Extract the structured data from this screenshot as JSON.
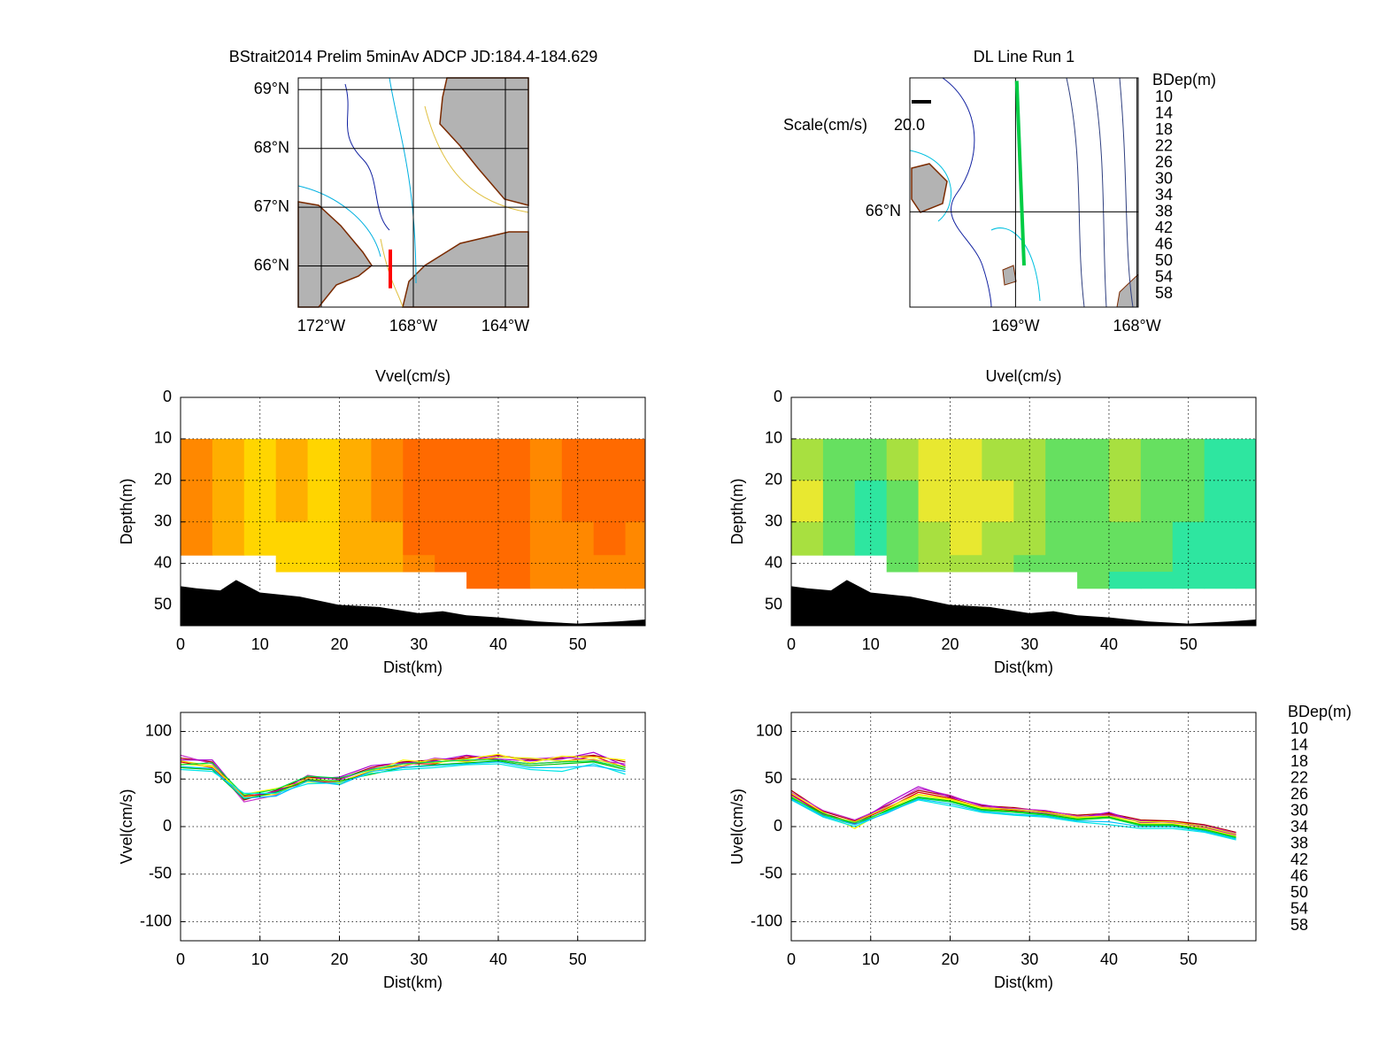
{
  "chart_data": [
    {
      "type": "map",
      "title": "BStrait2014 Prelim 5minAv ADCP JD:184.4-184.629",
      "xlim": [
        -173,
        -163
      ],
      "ylim": [
        65.3,
        69.2
      ],
      "xticks": [
        {
          "value": -172,
          "label": "172°W"
        },
        {
          "value": -168,
          "label": "168°W"
        },
        {
          "value": -164,
          "label": "164°W"
        }
      ],
      "yticks": [
        {
          "value": 66,
          "label": "66°N"
        },
        {
          "value": 67,
          "label": "67°N"
        },
        {
          "value": 68,
          "label": "68°N"
        },
        {
          "value": 69,
          "label": "69°N"
        }
      ],
      "grid": true,
      "track": {
        "color": "#ff0000",
        "lon": [
          -169,
          -169
        ],
        "lat": [
          65.62,
          66.28
        ]
      }
    },
    {
      "type": "map",
      "title": "DL Line Run 1",
      "xlim": [
        -169.87,
        -167.99
      ],
      "ylim": [
        65.68,
        66.45
      ],
      "xticks": [
        {
          "value": -169,
          "label": "169°W"
        },
        {
          "value": -168,
          "label": "168°W"
        }
      ],
      "yticks": [
        {
          "value": 66,
          "label": "66°N"
        }
      ],
      "grid": true,
      "track": {
        "color": "#00cc44",
        "lon": [
          -168.93,
          -168.99
        ],
        "lat": [
          65.82,
          66.44
        ]
      },
      "scale_label": "Scale(cm/s)",
      "scale": {
        "value": 20,
        "label": "20.0"
      },
      "legend_title": "BDep(m)",
      "legend_entries": [
        {
          "name": "10",
          "color": "#b00000"
        },
        {
          "name": "14",
          "color": "#dd0000"
        },
        {
          "name": "18",
          "color": "#cc33cc"
        },
        {
          "name": "22",
          "color": "#aa00cc"
        },
        {
          "name": "26",
          "color": "#ffff00"
        },
        {
          "name": "30",
          "color": "#e6e600"
        },
        {
          "name": "34",
          "color": "#00c000"
        },
        {
          "name": "38",
          "color": "#00dd44"
        },
        {
          "name": "42",
          "color": "#00e6e6"
        },
        {
          "name": "46",
          "color": "#00c0ff"
        },
        {
          "name": "50",
          "color": "#0000a0"
        },
        {
          "name": "54",
          "color": "#0000cc"
        },
        {
          "name": "58",
          "color": "#000000"
        }
      ]
    },
    {
      "type": "contour",
      "title": "Vvel(cm/s)",
      "xlabel": "Dist(km)",
      "ylabel": "Depth(m)",
      "xlim": [
        0,
        58.5
      ],
      "ylim": [
        0,
        55
      ],
      "y_reversed": true,
      "xticks": [
        0,
        10,
        20,
        30,
        40,
        50
      ],
      "yticks": [
        0,
        10,
        20,
        30,
        40,
        50
      ],
      "grid": true,
      "x_edges": [
        0,
        4,
        8,
        12,
        16,
        20,
        24,
        28,
        32,
        36,
        40,
        44,
        48,
        52,
        56,
        58.5
      ],
      "depth_edges": [
        10,
        20,
        30,
        38,
        42,
        46
      ],
      "z": [
        [
          65,
          55,
          45,
          50,
          45,
          55,
          60,
          75,
          75,
          75,
          72,
          65,
          70,
          75,
          70
        ],
        [
          68,
          58,
          45,
          50,
          48,
          52,
          62,
          72,
          75,
          78,
          72,
          68,
          72,
          72,
          70
        ],
        [
          65,
          50,
          42,
          45,
          42,
          50,
          55,
          70,
          72,
          75,
          70,
          65,
          65,
          70,
          65
        ],
        [
          null,
          null,
          null,
          45,
          45,
          50,
          55,
          65,
          70,
          72,
          70,
          65,
          65,
          68,
          62
        ],
        [
          null,
          null,
          null,
          null,
          null,
          null,
          null,
          null,
          null,
          70,
          70,
          65,
          62,
          65,
          60
        ]
      ],
      "levels": [
        0,
        10,
        20,
        30,
        40,
        50,
        60,
        70,
        80
      ],
      "level_colors": [
        "#2ee6a0",
        "#66e060",
        "#a8e040",
        "#e8e830",
        "#ffd500",
        "#ffae00",
        "#ff8800",
        "#ff6a00",
        "#e02810"
      ],
      "bottom": {
        "x": [
          0,
          2,
          5,
          7,
          10,
          15,
          20,
          25,
          30,
          33,
          36,
          40,
          45,
          50,
          55,
          58.5
        ],
        "depth": [
          45.5,
          46,
          46.5,
          44,
          47,
          48,
          50,
          50.5,
          52,
          51.5,
          52.5,
          53,
          54,
          54.5,
          54,
          53.5
        ]
      }
    },
    {
      "type": "contour",
      "title": "Uvel(cm/s)",
      "xlabel": "Dist(km)",
      "ylabel": "Depth(m)",
      "xlim": [
        0,
        58.5
      ],
      "ylim": [
        0,
        55
      ],
      "y_reversed": true,
      "xticks": [
        0,
        10,
        20,
        30,
        40,
        50
      ],
      "yticks": [
        0,
        10,
        20,
        30,
        40,
        50
      ],
      "grid": true,
      "x_edges": [
        0,
        4,
        8,
        12,
        16,
        20,
        24,
        28,
        32,
        36,
        40,
        44,
        48,
        52,
        56,
        58.5
      ],
      "depth_edges": [
        10,
        20,
        30,
        38,
        42,
        46
      ],
      "z": [
        [
          25,
          15,
          10,
          20,
          30,
          35,
          25,
          20,
          15,
          15,
          20,
          15,
          10,
          5,
          5
        ],
        [
          30,
          10,
          5,
          15,
          30,
          35,
          30,
          22,
          18,
          15,
          20,
          15,
          10,
          5,
          5
        ],
        [
          20,
          10,
          5,
          15,
          25,
          30,
          25,
          20,
          18,
          12,
          15,
          10,
          8,
          5,
          5
        ],
        [
          null,
          null,
          null,
          15,
          20,
          25,
          20,
          18,
          15,
          10,
          12,
          10,
          5,
          5,
          5
        ],
        [
          null,
          null,
          null,
          null,
          null,
          null,
          null,
          null,
          null,
          10,
          8,
          5,
          5,
          5,
          5
        ]
      ],
      "levels": [
        0,
        10,
        20,
        30,
        40,
        50,
        60,
        70,
        80
      ],
      "level_colors": [
        "#2ee6a0",
        "#66e060",
        "#a8e040",
        "#e8e830",
        "#ffd500",
        "#ffae00",
        "#ff8800",
        "#ff6a00",
        "#e02810"
      ],
      "bottom": {
        "x": [
          0,
          2,
          5,
          7,
          10,
          15,
          20,
          25,
          30,
          33,
          36,
          40,
          45,
          50,
          55,
          58.5
        ],
        "depth": [
          45.5,
          46,
          46.5,
          44,
          47,
          48,
          50,
          50.5,
          52,
          51.5,
          52.5,
          53,
          54,
          54.5,
          54,
          53.5
        ]
      }
    },
    {
      "type": "line",
      "xlabel": "Dist(km)",
      "ylabel": "Vvel(cm/s)",
      "xlim": [
        0,
        58.5
      ],
      "ylim": [
        -120,
        120
      ],
      "xticks": [
        0,
        10,
        20,
        30,
        40,
        50
      ],
      "yticks": [
        -100,
        -50,
        0,
        50,
        100
      ],
      "grid": true,
      "x": [
        0,
        4,
        8,
        12,
        16,
        20,
        24,
        28,
        32,
        36,
        40,
        44,
        48,
        52,
        56
      ],
      "series": [
        {
          "color": "#b00000",
          "values": [
            72,
            68,
            28,
            38,
            52,
            50,
            62,
            68,
            70,
            72,
            75,
            70,
            72,
            75,
            68
          ]
        },
        {
          "color": "#dd0000",
          "values": [
            68,
            62,
            32,
            36,
            48,
            46,
            58,
            66,
            66,
            74,
            70,
            66,
            68,
            74,
            62
          ]
        },
        {
          "color": "#cc33cc",
          "values": [
            75,
            66,
            26,
            33,
            54,
            49,
            61,
            63,
            72,
            69,
            74,
            71,
            73,
            70,
            66
          ]
        },
        {
          "color": "#aa00cc",
          "values": [
            70,
            70,
            30,
            37,
            50,
            52,
            64,
            67,
            69,
            75,
            71,
            69,
            71,
            78,
            64
          ]
        },
        {
          "color": "#ffff00",
          "values": [
            66,
            63,
            34,
            40,
            47,
            45,
            57,
            70,
            67,
            71,
            76,
            67,
            74,
            73,
            70
          ]
        },
        {
          "color": "#e6e600",
          "values": [
            69,
            64,
            31,
            34,
            51,
            47,
            59,
            64,
            71,
            68,
            73,
            72,
            69,
            71,
            63
          ]
        },
        {
          "color": "#00c000",
          "values": [
            62,
            60,
            29,
            36,
            49,
            48,
            55,
            62,
            65,
            67,
            69,
            64,
            66,
            68,
            60
          ]
        },
        {
          "color": "#00dd44",
          "values": [
            65,
            67,
            33,
            39,
            53,
            51,
            60,
            66,
            68,
            70,
            70,
            66,
            68,
            69,
            62
          ]
        },
        {
          "color": "#00e6e6",
          "values": [
            60,
            58,
            35,
            35,
            45,
            46,
            56,
            60,
            62,
            65,
            66,
            60,
            58,
            66,
            55
          ]
        },
        {
          "color": "#00c0ff",
          "values": [
            63,
            61,
            30,
            32,
            48,
            44,
            58,
            62,
            64,
            66,
            68,
            62,
            62,
            64,
            58
          ]
        }
      ]
    },
    {
      "type": "line",
      "xlabel": "Dist(km)",
      "ylabel": "Uvel(cm/s)",
      "xlim": [
        0,
        58.5
      ],
      "ylim": [
        -120,
        120
      ],
      "xticks": [
        0,
        10,
        20,
        30,
        40,
        50
      ],
      "yticks": [
        -100,
        -50,
        0,
        50,
        100
      ],
      "grid": true,
      "legend_title": "BDep(m)",
      "x": [
        0,
        4,
        8,
        12,
        16,
        20,
        24,
        28,
        32,
        36,
        40,
        44,
        48,
        52,
        56
      ],
      "series": [
        {
          "name": "10",
          "color": "#b00000",
          "values": [
            38,
            16,
            6,
            22,
            38,
            32,
            22,
            20,
            16,
            12,
            14,
            7,
            6,
            2,
            -6
          ]
        },
        {
          "name": "14",
          "color": "#dd0000",
          "values": [
            34,
            14,
            4,
            19,
            36,
            30,
            20,
            17,
            15,
            10,
            13,
            5,
            6,
            0,
            -8
          ]
        },
        {
          "name": "18",
          "color": "#cc33cc",
          "values": [
            36,
            17,
            7,
            21,
            40,
            33,
            21,
            19,
            17,
            11,
            12,
            6,
            4,
            1,
            -7
          ]
        },
        {
          "name": "22",
          "color": "#aa00cc",
          "values": [
            33,
            13,
            3,
            24,
            42,
            31,
            23,
            18,
            14,
            9,
            15,
            4,
            5,
            -1,
            -9
          ]
        },
        {
          "name": "26",
          "color": "#ffff00",
          "values": [
            35,
            15,
            -2,
            18,
            33,
            28,
            19,
            16,
            13,
            9,
            10,
            3,
            3,
            -2,
            -10
          ]
        },
        {
          "name": "30",
          "color": "#e6e600",
          "values": [
            32,
            12,
            5,
            20,
            34,
            29,
            20,
            18,
            15,
            10,
            11,
            5,
            5,
            0,
            -8
          ]
        },
        {
          "name": "34",
          "color": "#00c000",
          "values": [
            30,
            14,
            2,
            17,
            31,
            27,
            18,
            16,
            13,
            8,
            10,
            2,
            2,
            -3,
            -11
          ]
        },
        {
          "name": "38",
          "color": "#00dd44",
          "values": [
            31,
            12,
            4,
            16,
            30,
            26,
            17,
            15,
            12,
            7,
            9,
            1,
            1,
            -4,
            -12
          ]
        },
        {
          "name": "42",
          "color": "#00e6e6",
          "values": [
            28,
            10,
            0,
            15,
            28,
            22,
            15,
            12,
            10,
            5,
            2,
            -2,
            -2,
            -6,
            -14
          ]
        },
        {
          "name": "46",
          "color": "#00c0ff",
          "values": [
            29,
            11,
            2,
            14,
            29,
            24,
            16,
            13,
            11,
            6,
            5,
            0,
            0,
            -5,
            -13
          ]
        },
        {
          "name": "50",
          "color": "#0000a0",
          "values": [
            null,
            null,
            null,
            null,
            null,
            null,
            null,
            null,
            null,
            null,
            null,
            null,
            null,
            null,
            null
          ]
        },
        {
          "name": "54",
          "color": "#0000cc",
          "values": [
            null,
            null,
            null,
            null,
            null,
            null,
            null,
            null,
            null,
            null,
            null,
            null,
            null,
            null,
            null
          ]
        },
        {
          "name": "58",
          "color": "#000000",
          "values": [
            null,
            null,
            null,
            null,
            null,
            null,
            null,
            null,
            null,
            null,
            null,
            null,
            null,
            null,
            null
          ]
        }
      ]
    }
  ]
}
